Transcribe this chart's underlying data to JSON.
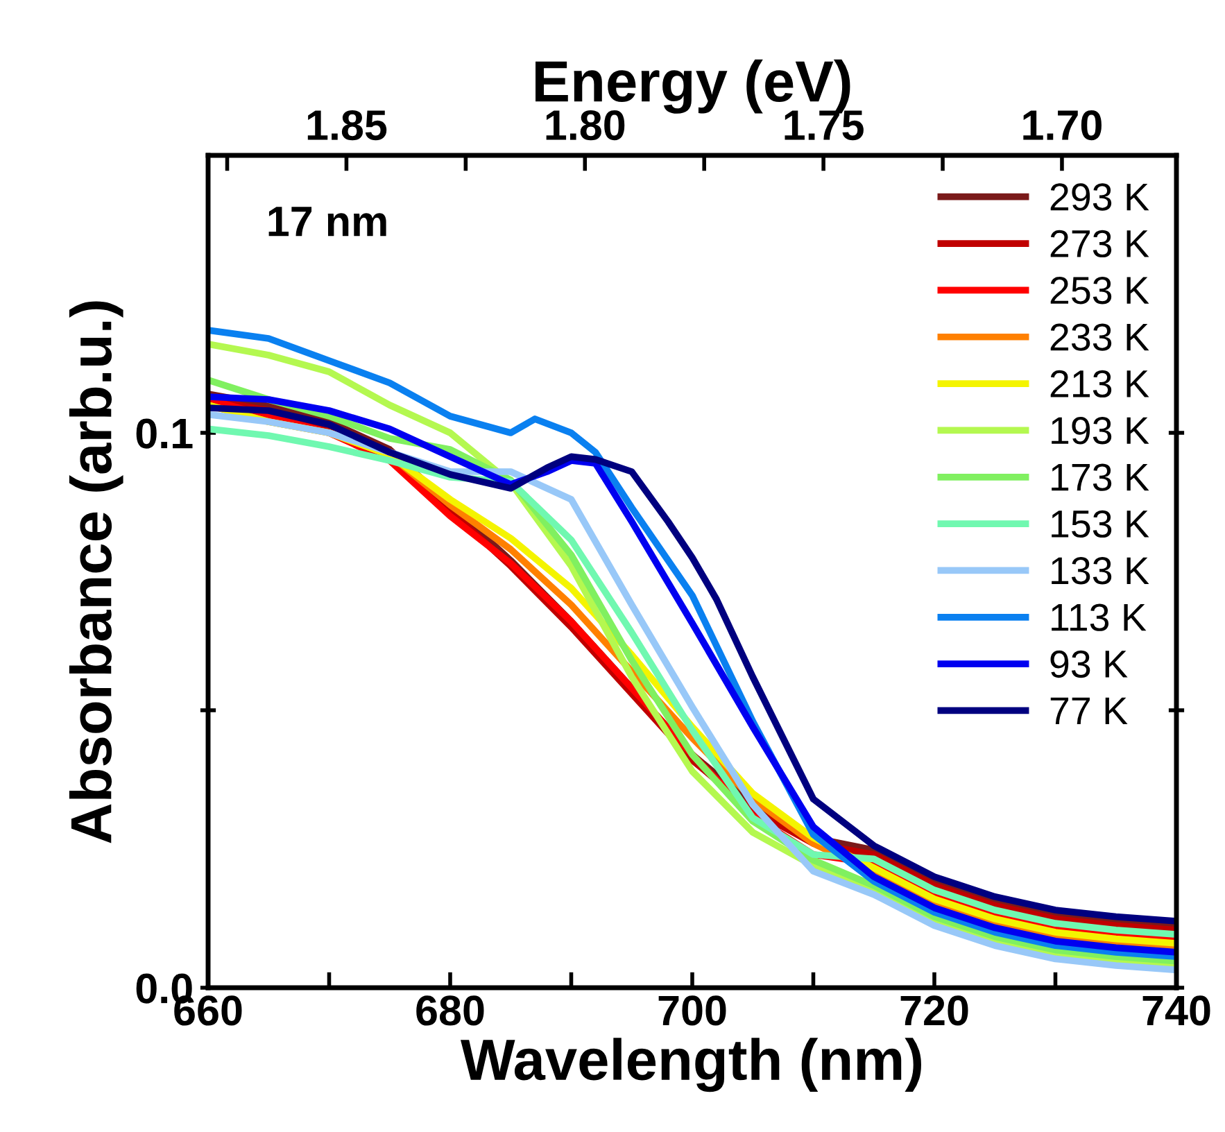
{
  "chart_data": {
    "type": "line",
    "xlabel": "Wavelength (nm)",
    "ylabel": "Absorbance (arb.u.)",
    "x2label": "Energy (eV)",
    "annotations": [
      "17 nm"
    ],
    "xlim": [
      660,
      740
    ],
    "xticks": [
      660,
      {
        "value": 670,
        "label": null
      },
      680,
      {
        "value": 690,
        "label": null
      },
      700,
      {
        "value": 710,
        "label": null
      },
      720,
      {
        "value": 730,
        "label": null
      },
      740
    ],
    "ylim": [
      0,
      0.15
    ],
    "yticks": [
      {
        "value": 0,
        "label": "0.0"
      },
      {
        "value": 0.05,
        "label": null
      },
      0.1
    ],
    "x2lim": [
      1.879,
      1.676
    ],
    "x2ticks": [
      {
        "value": 1.875,
        "label": null
      },
      1.85,
      {
        "value": 1.825,
        "label": null
      },
      {
        "value": 1.8,
        "label": "1.80"
      },
      {
        "value": 1.775,
        "label": null
      },
      1.75,
      {
        "value": 1.725,
        "label": null
      },
      {
        "value": 1.7,
        "label": "1.70"
      }
    ],
    "x": [
      660,
      665,
      670,
      675,
      680,
      685,
      690,
      695,
      700,
      705,
      710,
      715,
      720,
      725,
      730,
      735,
      740
    ],
    "legend": "top right",
    "grid": false,
    "marker": "none",
    "line_style": "solid",
    "series": [
      {
        "name": "293 K",
        "color": "#7a1a1a",
        "values": [
          0.107,
          0.105,
          0.102,
          0.097,
          0.087,
          0.077,
          0.066,
          0.054,
          0.042,
          0.033,
          0.027,
          0.0248,
          0.0192,
          0.0156,
          0.0132,
          0.012,
          0.0112
        ]
      },
      {
        "name": "273 K",
        "color": "#c00000",
        "values": [
          0.106,
          0.104,
          0.101,
          0.096,
          0.086,
          0.076,
          0.065,
          0.053,
          0.041,
          0.032,
          0.026,
          0.024,
          0.0184,
          0.0148,
          0.0124,
          0.0112,
          0.0104
        ]
      },
      {
        "name": "253 K",
        "color": "#ff0000",
        "values": [
          0.106,
          0.103,
          0.1,
          0.095,
          0.085,
          0.0765,
          0.066,
          0.054,
          0.042,
          0.031,
          0.024,
          0.0224,
          0.0168,
          0.0132,
          0.0108,
          0.0096,
          0.0088
        ]
      },
      {
        "name": "233 K",
        "color": "#ff8000",
        "values": [
          0.105,
          0.102,
          0.1,
          0.096,
          0.087,
          0.079,
          0.069,
          0.057,
          0.045,
          0.034,
          0.026,
          0.0208,
          0.0152,
          0.0116,
          0.0092,
          0.008,
          0.0072
        ]
      },
      {
        "name": "213 K",
        "color": "#f4f400",
        "values": [
          0.105,
          0.102,
          0.1,
          0.096,
          0.088,
          0.081,
          0.072,
          0.06,
          0.047,
          0.035,
          0.027,
          0.0216,
          0.016,
          0.0124,
          0.01,
          0.0088,
          0.008
        ]
      },
      {
        "name": "193 K",
        "color": "#b4f850",
        "values": [
          0.116,
          0.114,
          0.111,
          0.105,
          0.1,
          0.091,
          0.076,
          0.056,
          0.039,
          0.028,
          0.022,
          0.0176,
          0.012,
          0.0084,
          0.006,
          0.0048,
          0.004
        ]
      },
      {
        "name": "173 K",
        "color": "#80f060",
        "values": [
          0.1095,
          0.106,
          0.103,
          0.099,
          0.097,
          0.0915,
          0.078,
          0.059,
          0.042,
          0.03,
          0.023,
          0.0184,
          0.0128,
          0.0092,
          0.0068,
          0.0056,
          0.0048
        ]
      },
      {
        "name": "153 K",
        "color": "#70f8b0",
        "values": [
          0.1007,
          0.0995,
          0.0975,
          0.095,
          0.092,
          0.0912,
          0.0807,
          0.064,
          0.0464,
          0.0306,
          0.024,
          0.0232,
          0.0176,
          0.014,
          0.0116,
          0.0104,
          0.0096
        ]
      },
      {
        "name": "133 K",
        "color": "#98c8f8",
        "values": [
          0.1033,
          0.102,
          0.1,
          0.0965,
          0.093,
          0.093,
          0.088,
          0.069,
          0.0506,
          0.033,
          0.021,
          0.0168,
          0.0112,
          0.0076,
          0.0052,
          0.004,
          0.0032
        ]
      },
      {
        "name": "113 K",
        "color": "#0a80f0",
        "x": [
          660,
          665,
          670,
          675,
          680,
          685,
          687,
          690,
          692,
          695,
          700,
          705,
          710,
          715,
          720,
          725,
          730,
          735,
          740
        ],
        "values": [
          0.1185,
          0.117,
          0.113,
          0.109,
          0.103,
          0.1,
          0.1025,
          0.1,
          0.0965,
          0.0865,
          0.0707,
          0.048,
          0.0276,
          0.0192,
          0.0136,
          0.01,
          0.0076,
          0.0064,
          0.0056
        ]
      },
      {
        "name": "93 K",
        "color": "#0000f0",
        "x": [
          660,
          665,
          670,
          675,
          680,
          685,
          688,
          690,
          692,
          695,
          700,
          705,
          710,
          715,
          720,
          725,
          730,
          735,
          740
        ],
        "values": [
          0.1065,
          0.106,
          0.104,
          0.1007,
          0.0957,
          0.0907,
          0.093,
          0.095,
          0.0945,
          0.084,
          0.0657,
          0.047,
          0.029,
          0.02,
          0.0144,
          0.0108,
          0.0084,
          0.0072,
          0.0064
        ]
      },
      {
        "name": "77 K",
        "color": "#00007f",
        "x": [
          660,
          665,
          670,
          675,
          680,
          685,
          688,
          690,
          692,
          695,
          698,
          700,
          702,
          705,
          710,
          715,
          720,
          725,
          730,
          735,
          740
        ],
        "values": [
          0.1045,
          0.104,
          0.1015,
          0.0965,
          0.0925,
          0.09,
          0.0937,
          0.0957,
          0.0952,
          0.093,
          0.084,
          0.0775,
          0.07,
          0.056,
          0.034,
          0.0256,
          0.02,
          0.0164,
          0.014,
          0.0128,
          0.012
        ]
      }
    ]
  }
}
